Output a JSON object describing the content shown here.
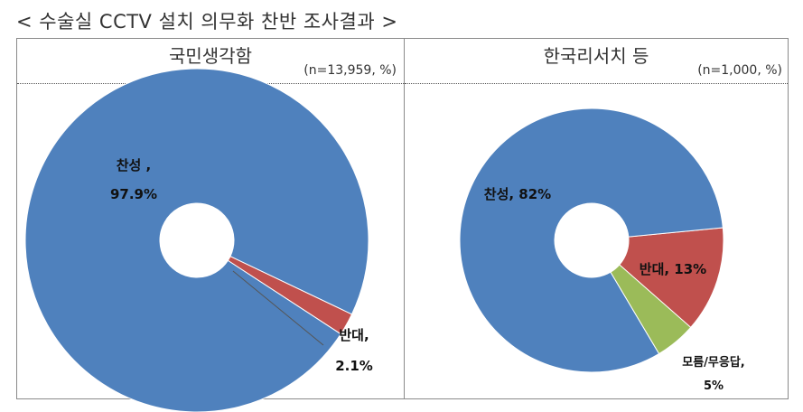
{
  "page": {
    "title": "< 수술실 CCTV 설치 의무화 찬반 조사결과 >"
  },
  "colors": {
    "agree": "#4f81bd",
    "oppose": "#c0504d",
    "unknown": "#9bbb59"
  },
  "chart_data": [
    {
      "type": "pie",
      "title": "국민생각함",
      "note": "(n=13,959, %)",
      "slices": [
        {
          "name": "찬성",
          "value": 97.9,
          "label_line1": "찬성 ,",
          "label_line2": "97.9%"
        },
        {
          "name": "반대",
          "value": 2.1,
          "label_line1": "반대,",
          "label_line2": "2.1%"
        }
      ]
    },
    {
      "type": "pie",
      "title": "한국리서치 등",
      "note": "(n=1,000, %)",
      "slices": [
        {
          "name": "찬성",
          "value": 82,
          "label_line1": "찬성, 82%",
          "label_line2": ""
        },
        {
          "name": "반대",
          "value": 13,
          "label_line1": "반대, 13%",
          "label_line2": ""
        },
        {
          "name": "모름/무응답",
          "value": 5,
          "label_line1": "모름/무응답,",
          "label_line2": "5%"
        }
      ]
    }
  ]
}
